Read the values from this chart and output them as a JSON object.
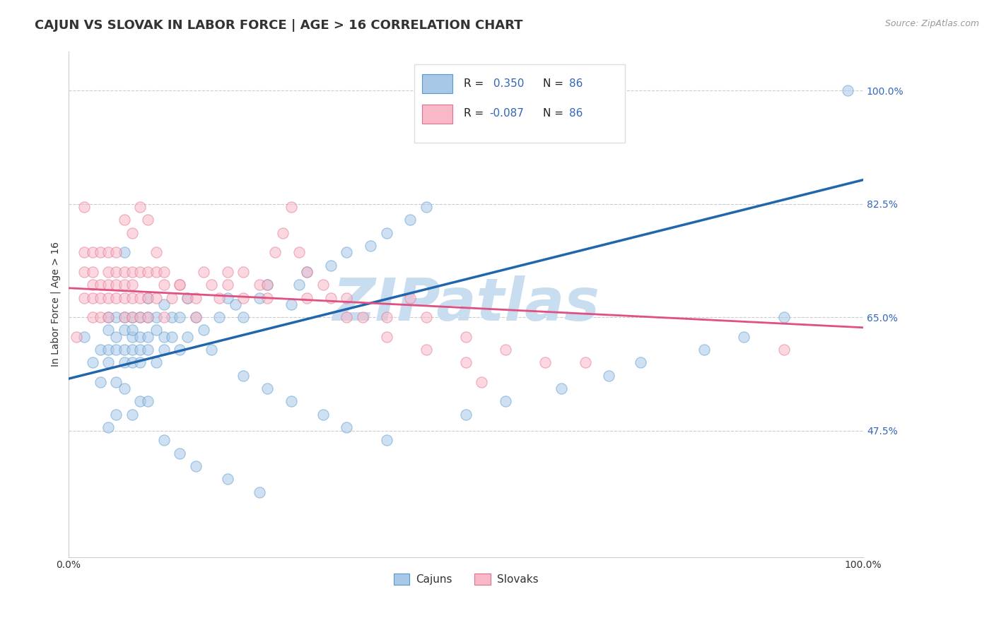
{
  "title": "CAJUN VS SLOVAK IN LABOR FORCE | AGE > 16 CORRELATION CHART",
  "source_text": "Source: ZipAtlas.com",
  "ylabel": "In Labor Force | Age > 16",
  "xlim": [
    0.0,
    1.0
  ],
  "ylim": [
    0.28,
    1.06
  ],
  "yticks": [
    0.475,
    0.65,
    0.825,
    1.0
  ],
  "ytick_labels": [
    "47.5%",
    "65.0%",
    "82.5%",
    "100.0%"
  ],
  "xtick_labels": [
    "0.0%",
    "100.0%"
  ],
  "cajun_color": "#a8c8e8",
  "cajun_edge_color": "#5599cc",
  "slovak_color": "#f8b8c8",
  "slovak_edge_color": "#e07090",
  "cajun_line_color": "#2166ac",
  "slovak_line_color": "#e05080",
  "legend_r_cajun": "R =  0.350",
  "legend_n_cajun": "N = 86",
  "legend_r_slovak": "R = -0.087",
  "legend_n_slovak": "N = 86",
  "watermark": "ZIPatlas",
  "watermark_color": "#c8ddf0",
  "background_color": "#ffffff",
  "grid_color": "#cccccc",
  "cajun_scatter_x": [
    0.02,
    0.03,
    0.04,
    0.04,
    0.05,
    0.05,
    0.05,
    0.05,
    0.06,
    0.06,
    0.06,
    0.06,
    0.07,
    0.07,
    0.07,
    0.07,
    0.07,
    0.08,
    0.08,
    0.08,
    0.08,
    0.08,
    0.09,
    0.09,
    0.09,
    0.09,
    0.1,
    0.1,
    0.1,
    0.1,
    0.11,
    0.11,
    0.11,
    0.12,
    0.12,
    0.12,
    0.13,
    0.13,
    0.14,
    0.14,
    0.15,
    0.15,
    0.16,
    0.17,
    0.18,
    0.19,
    0.2,
    0.21,
    0.22,
    0.24,
    0.25,
    0.28,
    0.29,
    0.3,
    0.33,
    0.35,
    0.38,
    0.4,
    0.43,
    0.45,
    0.22,
    0.25,
    0.28,
    0.32,
    0.35,
    0.4,
    0.5,
    0.55,
    0.62,
    0.68,
    0.72,
    0.8,
    0.85,
    0.9,
    0.05,
    0.06,
    0.07,
    0.08,
    0.09,
    0.1,
    0.12,
    0.14,
    0.16,
    0.2,
    0.24,
    0.98
  ],
  "cajun_scatter_y": [
    0.62,
    0.58,
    0.6,
    0.55,
    0.63,
    0.58,
    0.6,
    0.65,
    0.6,
    0.62,
    0.65,
    0.55,
    0.65,
    0.63,
    0.6,
    0.58,
    0.75,
    0.62,
    0.65,
    0.6,
    0.58,
    0.63,
    0.62,
    0.65,
    0.6,
    0.58,
    0.65,
    0.62,
    0.68,
    0.6,
    0.65,
    0.63,
    0.58,
    0.62,
    0.67,
    0.6,
    0.65,
    0.62,
    0.65,
    0.6,
    0.68,
    0.62,
    0.65,
    0.63,
    0.6,
    0.65,
    0.68,
    0.67,
    0.65,
    0.68,
    0.7,
    0.67,
    0.7,
    0.72,
    0.73,
    0.75,
    0.76,
    0.78,
    0.8,
    0.82,
    0.56,
    0.54,
    0.52,
    0.5,
    0.48,
    0.46,
    0.5,
    0.52,
    0.54,
    0.56,
    0.58,
    0.6,
    0.62,
    0.65,
    0.48,
    0.5,
    0.54,
    0.5,
    0.52,
    0.52,
    0.46,
    0.44,
    0.42,
    0.4,
    0.38,
    1.0
  ],
  "slovak_scatter_x": [
    0.01,
    0.02,
    0.02,
    0.02,
    0.02,
    0.03,
    0.03,
    0.03,
    0.03,
    0.03,
    0.04,
    0.04,
    0.04,
    0.04,
    0.05,
    0.05,
    0.05,
    0.05,
    0.05,
    0.06,
    0.06,
    0.06,
    0.06,
    0.07,
    0.07,
    0.07,
    0.07,
    0.08,
    0.08,
    0.08,
    0.08,
    0.09,
    0.09,
    0.09,
    0.1,
    0.1,
    0.1,
    0.11,
    0.11,
    0.12,
    0.12,
    0.13,
    0.14,
    0.15,
    0.16,
    0.17,
    0.18,
    0.19,
    0.2,
    0.22,
    0.22,
    0.24,
    0.25,
    0.26,
    0.27,
    0.28,
    0.29,
    0.3,
    0.32,
    0.33,
    0.35,
    0.37,
    0.4,
    0.43,
    0.45,
    0.5,
    0.55,
    0.6,
    0.65,
    0.07,
    0.08,
    0.09,
    0.1,
    0.11,
    0.12,
    0.14,
    0.16,
    0.2,
    0.25,
    0.3,
    0.35,
    0.4,
    0.45,
    0.5,
    0.52,
    0.9
  ],
  "slovak_scatter_y": [
    0.62,
    0.75,
    0.68,
    0.72,
    0.82,
    0.7,
    0.75,
    0.68,
    0.65,
    0.72,
    0.68,
    0.75,
    0.7,
    0.65,
    0.72,
    0.68,
    0.75,
    0.7,
    0.65,
    0.68,
    0.72,
    0.75,
    0.7,
    0.68,
    0.65,
    0.72,
    0.7,
    0.68,
    0.72,
    0.65,
    0.7,
    0.68,
    0.65,
    0.72,
    0.68,
    0.72,
    0.65,
    0.68,
    0.72,
    0.7,
    0.65,
    0.68,
    0.7,
    0.68,
    0.65,
    0.72,
    0.7,
    0.68,
    0.7,
    0.72,
    0.68,
    0.7,
    0.68,
    0.75,
    0.78,
    0.82,
    0.75,
    0.72,
    0.7,
    0.68,
    0.68,
    0.65,
    0.65,
    0.68,
    0.65,
    0.62,
    0.6,
    0.58,
    0.58,
    0.8,
    0.78,
    0.82,
    0.8,
    0.75,
    0.72,
    0.7,
    0.68,
    0.72,
    0.7,
    0.68,
    0.65,
    0.62,
    0.6,
    0.58,
    0.55,
    0.6
  ],
  "cajun_trend_x0": 0.0,
  "cajun_trend_y0": 0.555,
  "cajun_trend_x1": 1.0,
  "cajun_trend_y1": 0.862,
  "slovak_trend_x0": 0.0,
  "slovak_trend_y0": 0.695,
  "slovak_trend_x1": 1.0,
  "slovak_trend_y1": 0.634,
  "title_fontsize": 13,
  "axis_label_fontsize": 10,
  "tick_fontsize": 10,
  "legend_fontsize": 11,
  "dot_size": 120,
  "dot_alpha": 0.55
}
